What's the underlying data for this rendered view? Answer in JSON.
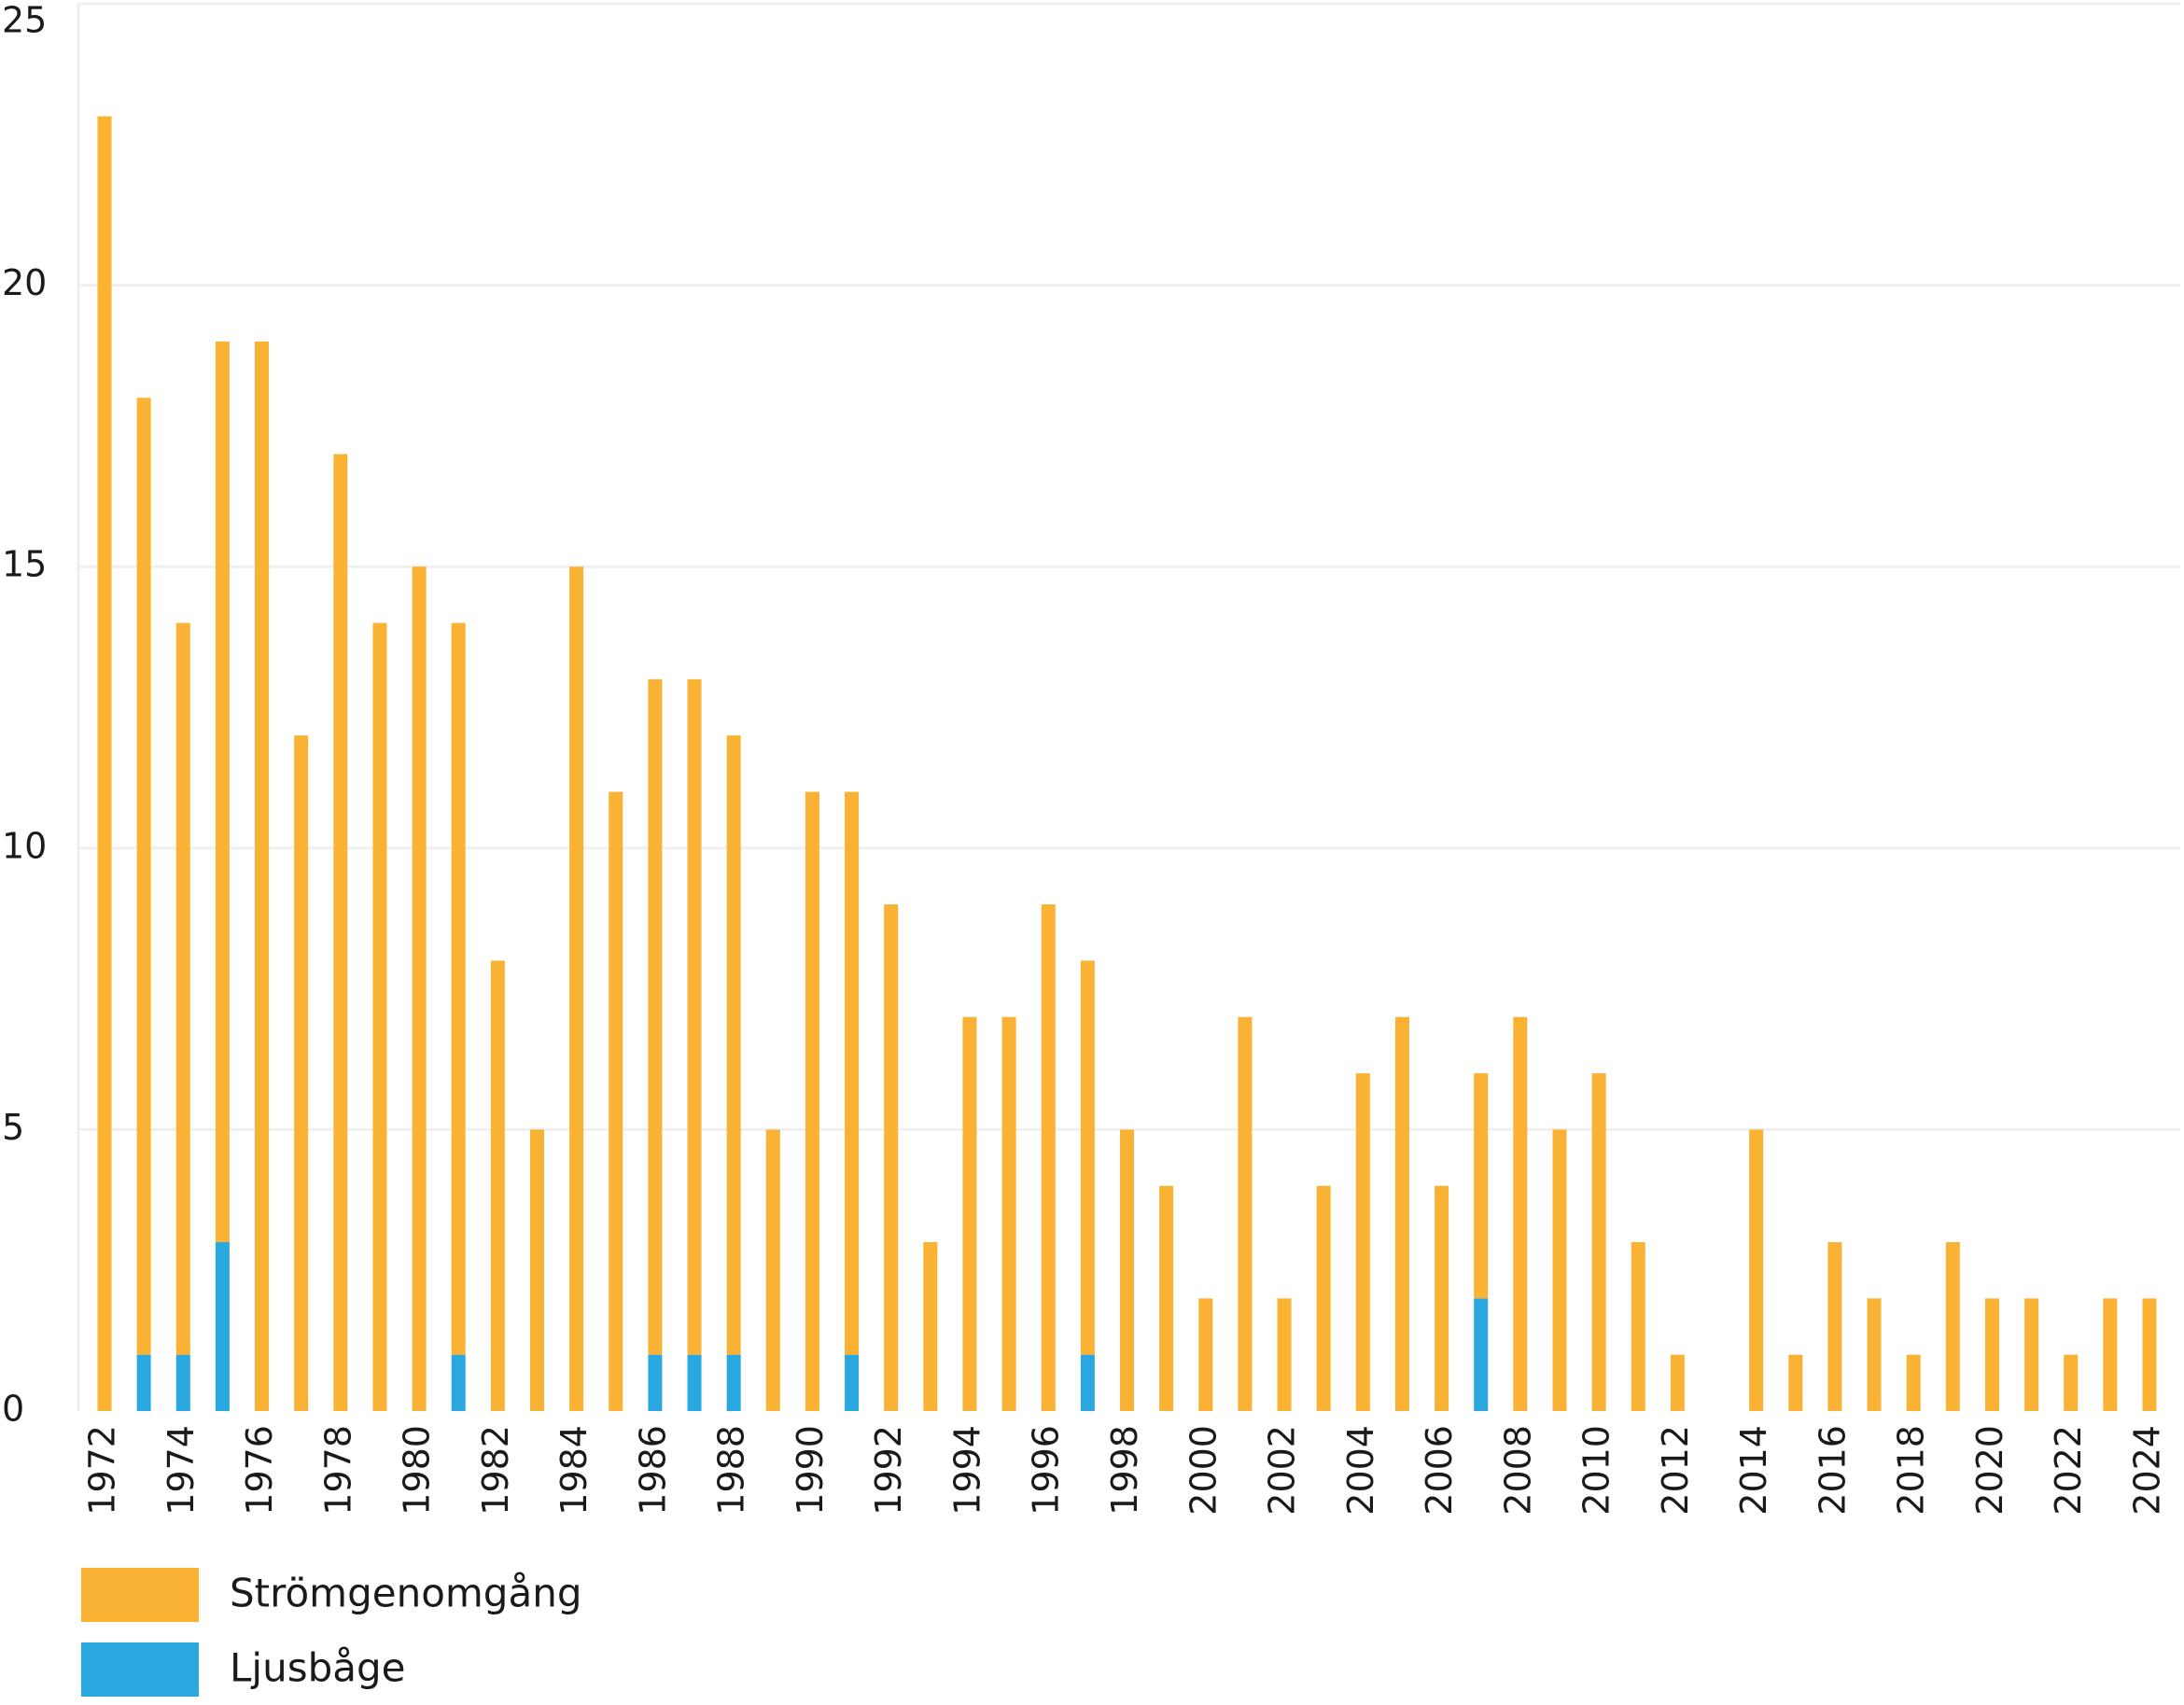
{
  "chart_data": {
    "type": "stacked_bar",
    "categories": [
      "1972",
      null,
      "1974",
      null,
      "1976",
      null,
      "1978",
      null,
      "1980",
      null,
      "1982",
      null,
      "1984",
      null,
      "1986",
      null,
      "1988",
      null,
      "1990",
      null,
      "1992",
      null,
      "1994",
      null,
      "1996",
      null,
      "1998",
      null,
      "2000",
      null,
      "2002",
      null,
      "2004",
      null,
      "2006",
      null,
      "2008",
      null,
      "2010",
      null,
      "2012",
      null,
      "2014",
      null,
      "2016",
      null,
      "2018",
      null,
      "2020",
      null,
      "2022",
      null,
      "2024"
    ],
    "series": [
      {
        "name": "Strömgenomgång",
        "color": "#F9B233",
        "values": [
          23,
          17,
          13,
          16,
          19,
          12,
          17,
          14,
          15,
          13,
          8,
          5,
          15,
          11,
          12,
          12,
          11,
          5,
          11,
          10,
          9,
          3,
          7,
          7,
          9,
          7,
          5,
          4,
          2,
          7,
          2,
          4,
          6,
          7,
          4,
          4,
          7,
          5,
          6,
          3,
          1,
          0,
          5,
          1,
          3,
          2,
          1,
          3,
          2,
          2,
          1,
          2,
          2
        ]
      },
      {
        "name": "Ljusbåge",
        "color": "#29A8E0",
        "values": [
          0,
          1,
          1,
          3,
          0,
          0,
          0,
          0,
          0,
          1,
          0,
          0,
          0,
          0,
          1,
          1,
          1,
          0,
          0,
          1,
          0,
          0,
          0,
          0,
          0,
          1,
          0,
          0,
          0,
          0,
          0,
          0,
          0,
          0,
          0,
          2,
          0,
          0,
          0,
          0,
          0,
          0,
          0,
          0,
          0,
          0,
          0,
          0,
          0,
          0,
          0,
          0,
          0
        ]
      }
    ],
    "ylim": [
      0,
      25
    ],
    "yticks": [
      0,
      5,
      10,
      15,
      20,
      25
    ],
    "grid": true
  }
}
